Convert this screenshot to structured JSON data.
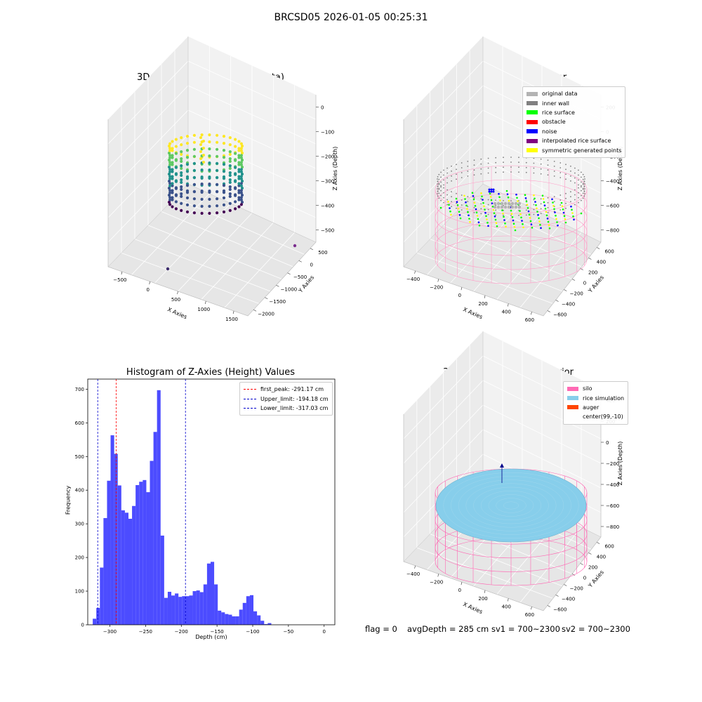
{
  "figure": {
    "suptitle": "BRCSD05 2026-01-05 00:25:31",
    "footer": {
      "flag": "flag = 0",
      "avg_depth": "avgDepth = 285 cm",
      "sv1": "sv1 = 700~2300",
      "sv2": "sv2 = 700~2300"
    }
  },
  "chart_data": [
    {
      "id": "raw",
      "type": "scatter",
      "title": "3D Plot of Silo Interior(row data)",
      "xlabel": "X Axies",
      "ylabel": "Y Axies",
      "zlabel": "Z Axies (Depth)",
      "x_ticks": [
        "−500",
        "0",
        "500",
        "1000",
        "1500"
      ],
      "y_ticks": [
        "500",
        "0",
        "−500",
        "−1000",
        "−1500",
        "−2000"
      ],
      "z_ticks": [
        "0",
        "−100",
        "−200",
        "−300",
        "−400",
        "−500"
      ],
      "outliers": [
        {
          "x": 1600,
          "y": 550,
          "z": -500,
          "color": "#7b2d8e"
        },
        {
          "x": 500,
          "y": -1600,
          "z": -500,
          "color": "#3b2a6b"
        }
      ],
      "colormap": [
        "#440154",
        "#3b528b",
        "#21918c",
        "#5ec962",
        "#fde725"
      ]
    },
    {
      "id": "classify",
      "type": "scatter",
      "title": "3D classify of Silo Interior",
      "xlabel": "X Axies",
      "ylabel": "Y Axies",
      "zlabel": "Z Axies (Depth)",
      "x_ticks": [
        "−400",
        "−200",
        "0",
        "200",
        "400",
        "600"
      ],
      "y_ticks": [
        "600",
        "400",
        "200",
        "0",
        "−200",
        "−400",
        "−600"
      ],
      "z_ticks": [
        "200",
        "0",
        "−200",
        "−400",
        "−600",
        "−800"
      ],
      "legend": [
        {
          "label": "original data",
          "color": "#b3b3b3"
        },
        {
          "label": "inner wall",
          "color": "#808080"
        },
        {
          "label": "rice surface",
          "color": "#00ff00"
        },
        {
          "label": "obstacle",
          "color": "#ff0000"
        },
        {
          "label": "noise",
          "color": "#0000ff"
        },
        {
          "label": "interpolated rice surface",
          "color": "#800080"
        },
        {
          "label": "symmetric generated points",
          "color": "#ffff00"
        }
      ],
      "wireframe_color": "#ff9ec8"
    },
    {
      "id": "histogram",
      "type": "bar",
      "title": "Histogram of Z-Axies (Height) Values",
      "xlabel": "Depth (cm)",
      "ylabel": "Frequency",
      "xlim": [
        -331,
        15
      ],
      "ylim": [
        0,
        730
      ],
      "x_ticks": [
        -300,
        -250,
        -200,
        -150,
        -100,
        -50,
        0
      ],
      "x_tick_labels": [
        "−300",
        "−250",
        "−200",
        "−150",
        "−100",
        "−50",
        "0"
      ],
      "y_ticks": [
        0,
        100,
        200,
        300,
        400,
        500,
        600,
        700
      ],
      "bar_color": "#4c4cff",
      "bin_width": 5,
      "bin_start": -324,
      "values": [
        18,
        50,
        170,
        317,
        428,
        563,
        508,
        414,
        340,
        333,
        315,
        353,
        415,
        425,
        430,
        394,
        487,
        573,
        697,
        265,
        80,
        98,
        87,
        93,
        83,
        85,
        85,
        87,
        100,
        102,
        97,
        120,
        182,
        187,
        120,
        42,
        37,
        32,
        30,
        25,
        25,
        45,
        65,
        85,
        88,
        40,
        28,
        12,
        2,
        5
      ],
      "reference_lines": [
        {
          "label": "first_peak: -291.17 cm",
          "value": -291.17,
          "color": "#ff0000"
        },
        {
          "label": "Upper_limit: -194.18 cm",
          "value": -194.18,
          "color": "#0000cc"
        },
        {
          "label": "Lower_limit: -317.03 cm",
          "value": -317.03,
          "color": "#0000cc"
        }
      ]
    },
    {
      "id": "simulation",
      "type": "scatter",
      "title": "3D simulation of Silo Interior",
      "xlabel": "X Axies",
      "ylabel": "Y Axies",
      "zlabel": "Z Axies (Depth)",
      "x_ticks": [
        "−400",
        "−200",
        "0",
        "200",
        "400",
        "600"
      ],
      "y_ticks": [
        "600",
        "400",
        "200",
        "0",
        "−200",
        "−400",
        "−600"
      ],
      "z_ticks": [
        "400",
        "200",
        "0",
        "−200",
        "−400",
        "−600",
        "−800"
      ],
      "legend": [
        {
          "label": "silo",
          "color": "#ff69b4"
        },
        {
          "label": "rice simulation",
          "color": "#87ceeb"
        },
        {
          "label": "auger",
          "color": "#ff4500"
        },
        {
          "label": "center(99,-10)",
          "color": "none"
        }
      ],
      "wireframe_color": "#ff69b4",
      "surface_color": "#87ceeb"
    }
  ]
}
